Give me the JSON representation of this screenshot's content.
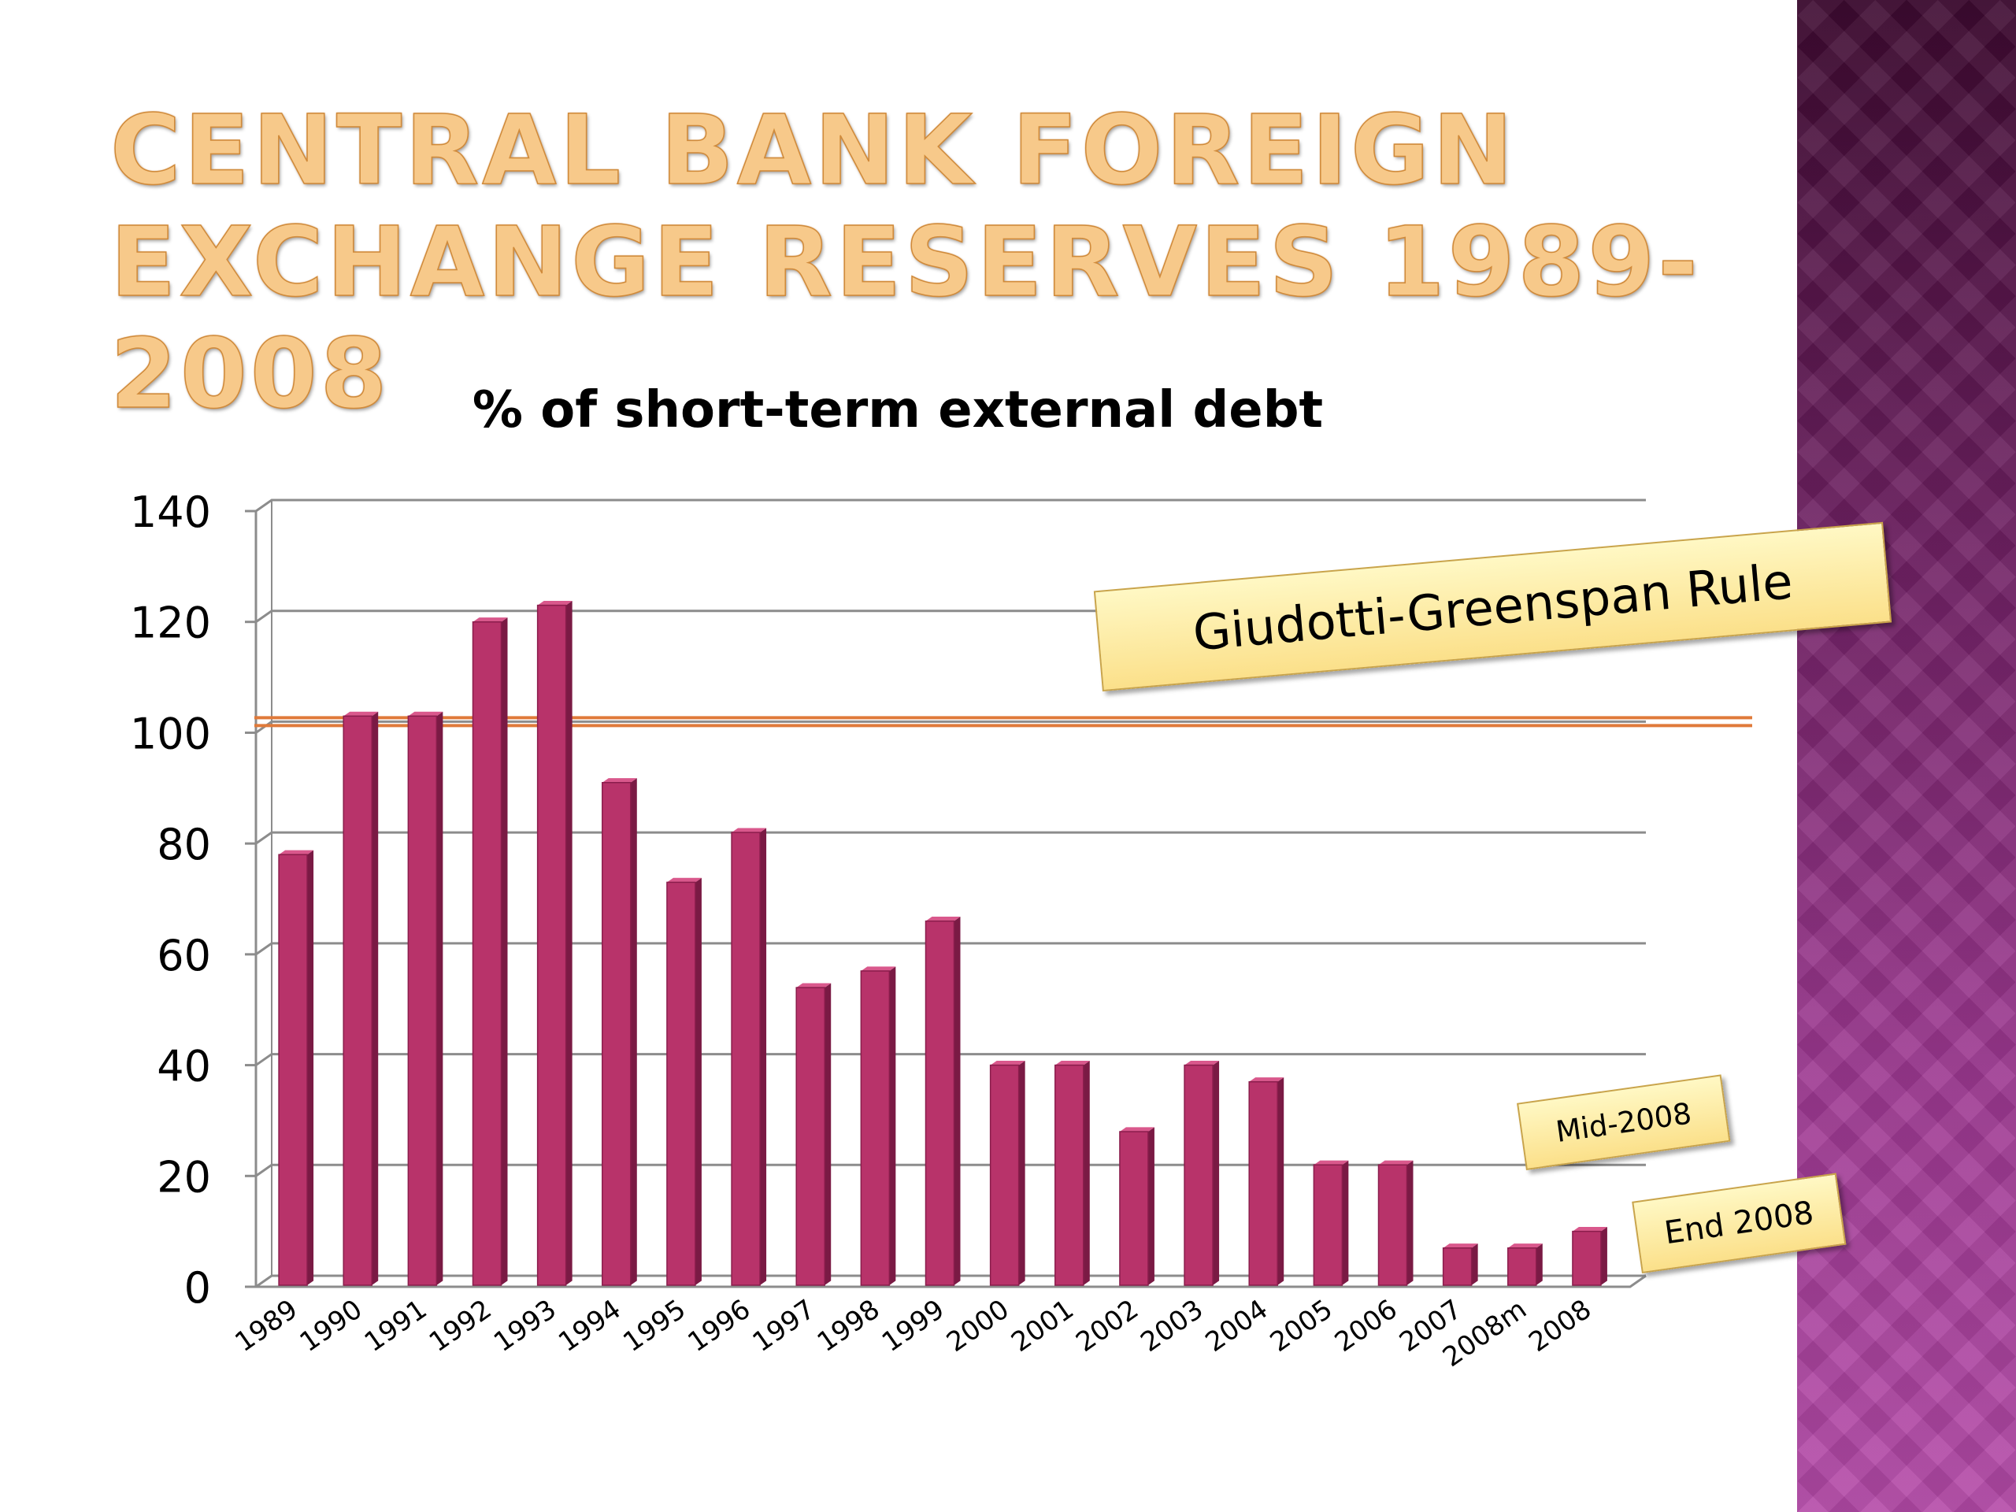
{
  "slide": {
    "title_line1": "Central Bank Foreign",
    "title_line2": "Exchange Reserves 1989-2008"
  },
  "colors": {
    "bar": "#b8336a",
    "bar_dark": "#7a1a44",
    "threshold_line": "#e07a3a",
    "gridline": "#8c8c8c",
    "title": "#f7c98a"
  },
  "annotations": {
    "rule_label": "Giudotti-Greenspan Rule",
    "mid_label": "Mid-2008",
    "end_label": "End 2008"
  },
  "chart_data": {
    "type": "bar",
    "title": "% of short-term external debt",
    "xlabel": "",
    "ylabel": "",
    "categories": [
      "1989",
      "1990",
      "1991",
      "1992",
      "1993",
      "1994",
      "1995",
      "1996",
      "1997",
      "1998",
      "1999",
      "2000",
      "2001",
      "2002",
      "2003",
      "2004",
      "2005",
      "2006",
      "2007",
      "2008m",
      "2008"
    ],
    "values": [
      78,
      103,
      103,
      120,
      123,
      91,
      73,
      82,
      54,
      57,
      66,
      40,
      40,
      28,
      40,
      37,
      22,
      22,
      7,
      7,
      10
    ],
    "ylim": [
      0,
      140
    ],
    "yticks": [
      0,
      20,
      40,
      60,
      80,
      100,
      120,
      140
    ],
    "grid": true,
    "legend": "none",
    "reference_line": {
      "value": 100,
      "label": "Giudotti-Greenspan Rule"
    }
  }
}
